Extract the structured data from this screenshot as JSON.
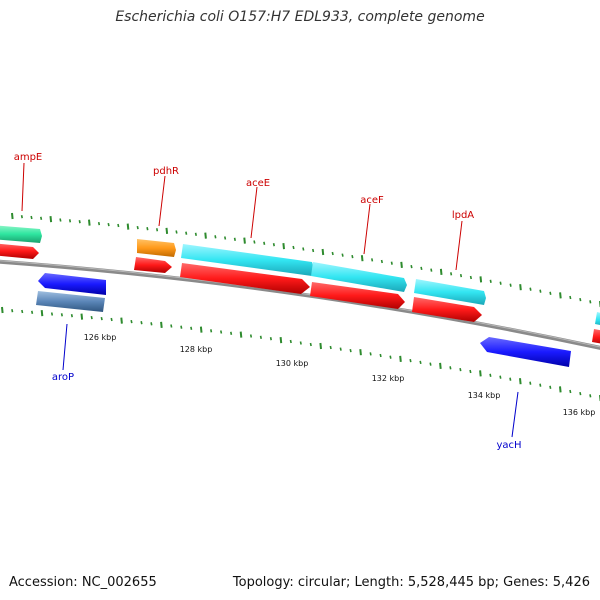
{
  "title": "Escherichia coli O157:H7 EDL933, complete genome",
  "footer": {
    "accession": "Accession: NC_002655",
    "summary": "Topology: circular; Length: 5,528,445 bp; Genes: 5,426"
  },
  "colors": {
    "backbone": "#8a8a8a",
    "tick": "#2e8b2e",
    "red_gene": "#ff1a1a",
    "cyan_gene": "#33e6f2",
    "orange_gene": "#ff9a1a",
    "green_gene": "#2ee6a0",
    "blue_gene": "#1a1aff",
    "steel_gene": "#5b86b8",
    "label_red": "#cc0000",
    "label_blue": "#0000cc"
  },
  "scale_labels": [
    {
      "text": "126 kbp",
      "pos_kbp": 126
    },
    {
      "text": "128 kbp",
      "pos_kbp": 128
    },
    {
      "text": "130 kbp",
      "pos_kbp": 130
    },
    {
      "text": "132 kbp",
      "pos_kbp": 132
    },
    {
      "text": "134 kbp",
      "pos_kbp": 134
    },
    {
      "text": "136 kbp",
      "pos_kbp": 136
    }
  ],
  "gene_labels": [
    {
      "text": "ampE",
      "strand": "top"
    },
    {
      "text": "pdhR",
      "strand": "top"
    },
    {
      "text": "aceE",
      "strand": "top"
    },
    {
      "text": "aceF",
      "strand": "top"
    },
    {
      "text": "lpdA",
      "strand": "top"
    },
    {
      "text": "aroP",
      "strand": "bottom"
    },
    {
      "text": "yacH",
      "strand": "bottom"
    }
  ]
}
